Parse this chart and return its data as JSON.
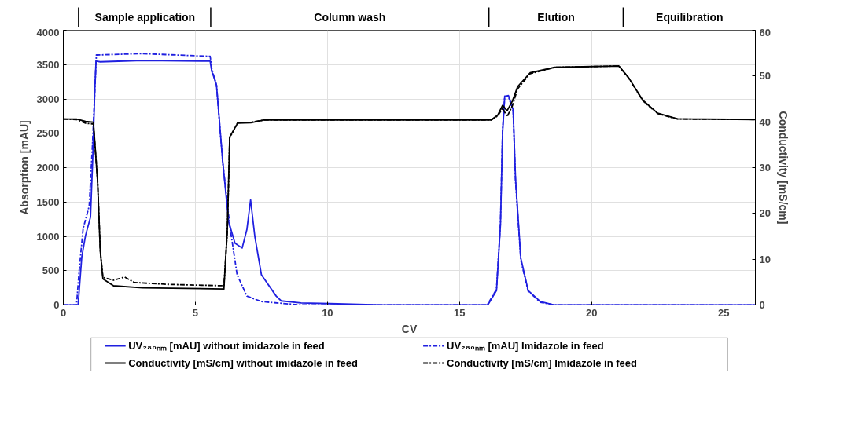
{
  "chart_data": {
    "type": "line",
    "xlabel": "CV",
    "ylabel": "Absorption [mAU]",
    "y2label": "Conductivity [mS/cm]",
    "xlim": [
      0,
      26.2
    ],
    "xticks": [
      0,
      5,
      10,
      15,
      20,
      25
    ],
    "ylim": [
      0,
      4000
    ],
    "yticks": [
      0,
      500,
      1000,
      1500,
      2000,
      2500,
      3000,
      3500,
      4000
    ],
    "y2lim": [
      0,
      60
    ],
    "y2ticks": [
      0,
      10,
      20,
      30,
      40,
      50,
      60
    ],
    "grid": true,
    "legend": "bottom",
    "annotations": [
      "Sample application",
      "Column wash",
      "Elution",
      "Equilibration"
    ],
    "series": [
      {
        "name": "UV₂₈₀ₙₘ [mAU] without imidazole in feed",
        "color": "#2020e0",
        "line_style": "solid",
        "x": [
          0,
          0.56,
          0.7,
          0.84,
          1.03,
          1.12,
          1.19,
          1.24,
          1.4,
          3,
          5.56,
          5.62,
          5.68,
          5.8,
          6.03,
          6.26,
          6.5,
          6.77,
          6.95,
          7.09,
          7.25,
          7.5,
          8.06,
          8.25,
          9,
          10.1,
          12,
          16.07,
          16.4,
          16.55,
          16.63,
          16.71,
          16.85,
          17.03,
          17.12,
          17.32,
          17.6,
          18.06,
          18.6,
          26.2
        ],
        "values": [
          0,
          0,
          700,
          1010,
          1280,
          2200,
          3110,
          3550,
          3540,
          3560,
          3550,
          3400,
          3340,
          3200,
          2110,
          1210,
          900,
          830,
          1100,
          1530,
          1000,
          440,
          130,
          60,
          30,
          20,
          0,
          0,
          210,
          1170,
          2510,
          3030,
          3050,
          2840,
          1840,
          680,
          210,
          50,
          0,
          0
        ]
      },
      {
        "name": "UV₂₈₀ₙₘ [mAU] Imidazole in feed",
        "color": "#2020e0",
        "line_style": "dashed",
        "x": [
          0,
          0.5,
          0.6,
          0.75,
          0.98,
          1.1,
          1.2,
          1.25,
          3,
          5.56,
          5.62,
          5.68,
          5.8,
          6.03,
          6.3,
          6.58,
          6.95,
          7.5,
          9,
          16.05,
          16.4,
          16.55,
          16.63,
          16.71,
          16.85,
          17.03,
          17.12,
          17.32,
          17.6,
          18.06,
          18.6,
          26.2
        ],
        "values": [
          0,
          0,
          500,
          1110,
          1440,
          2300,
          3180,
          3640,
          3660,
          3620,
          3450,
          3360,
          3200,
          2100,
          1160,
          440,
          130,
          50,
          0,
          0,
          230,
          1200,
          2550,
          3040,
          3040,
          2820,
          1800,
          650,
          200,
          40,
          0,
          0
        ]
      },
      {
        "name": "Conductivity [mS/cm] without imidazole in feed",
        "color": "#000000",
        "line_style": "solid",
        "axis": "y2",
        "x": [
          0,
          0.5,
          0.84,
          1.14,
          1.3,
          1.4,
          1.5,
          1.9,
          3,
          6.08,
          6.21,
          6.3,
          6.6,
          7.1,
          7.6,
          16.2,
          16.45,
          16.63,
          16.8,
          17.0,
          17.2,
          17.67,
          18.6,
          21.03,
          21.4,
          21.94,
          22.5,
          23.25,
          26.2
        ],
        "values": [
          40.6,
          40.6,
          40.1,
          39.9,
          26.7,
          11.7,
          5.7,
          4.2,
          3.75,
          3.5,
          16.6,
          36.7,
          39.7,
          39.8,
          40.4,
          40.4,
          41.5,
          43.6,
          42.4,
          44.5,
          47.7,
          50.7,
          51.9,
          52.2,
          49.65,
          44.7,
          41.9,
          40.65,
          40.5
        ]
      },
      {
        "name": "Conductivity [mS/cm] Imidazole in feed",
        "color": "#000000",
        "line_style": "dashed",
        "axis": "y2",
        "x": [
          0,
          0.5,
          0.84,
          1.14,
          1.3,
          1.4,
          1.5,
          1.9,
          2.32,
          2.7,
          4,
          6.08,
          6.21,
          6.3,
          6.6,
          7.1,
          7.6,
          16.2,
          16.45,
          16.63,
          16.8,
          17.0,
          17.2,
          17.67,
          18.6,
          21.03,
          21.4,
          21.94,
          22.5,
          23.25,
          26.2
        ],
        "values": [
          40.6,
          40.5,
          39.7,
          39.5,
          27,
          12,
          6,
          5.4,
          6.1,
          4.9,
          4.5,
          4.2,
          16,
          36.5,
          39.8,
          39.9,
          40.4,
          40.4,
          41.3,
          43.0,
          41.1,
          43.5,
          47.2,
          50.5,
          51.9,
          52.2,
          49.6,
          44.6,
          41.8,
          40.6,
          40.5
        ]
      }
    ]
  }
}
